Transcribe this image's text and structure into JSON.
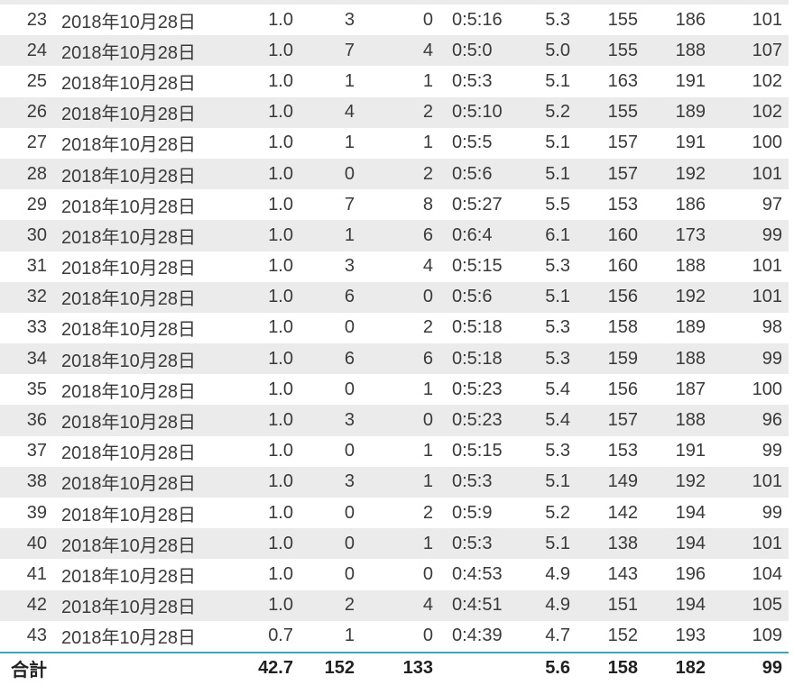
{
  "colors": {
    "row_stripe": "#ebebeb",
    "total_separator_line": "#3da8b4",
    "body_text": "#3a3a3a",
    "total_text": "#212121",
    "background": "#ffffff"
  },
  "table": {
    "rows": [
      [
        "23",
        "2018年10月28日",
        "1.0",
        "3",
        "0",
        "0:5:16",
        "5.3",
        "155",
        "186",
        "101"
      ],
      [
        "24",
        "2018年10月28日",
        "1.0",
        "7",
        "4",
        "0:5:0",
        "5.0",
        "155",
        "188",
        "107"
      ],
      [
        "25",
        "2018年10月28日",
        "1.0",
        "1",
        "1",
        "0:5:3",
        "5.1",
        "163",
        "191",
        "102"
      ],
      [
        "26",
        "2018年10月28日",
        "1.0",
        "4",
        "2",
        "0:5:10",
        "5.2",
        "155",
        "189",
        "102"
      ],
      [
        "27",
        "2018年10月28日",
        "1.0",
        "1",
        "1",
        "0:5:5",
        "5.1",
        "157",
        "191",
        "100"
      ],
      [
        "28",
        "2018年10月28日",
        "1.0",
        "0",
        "2",
        "0:5:6",
        "5.1",
        "157",
        "192",
        "101"
      ],
      [
        "29",
        "2018年10月28日",
        "1.0",
        "7",
        "8",
        "0:5:27",
        "5.5",
        "153",
        "186",
        "97"
      ],
      [
        "30",
        "2018年10月28日",
        "1.0",
        "1",
        "6",
        "0:6:4",
        "6.1",
        "160",
        "173",
        "99"
      ],
      [
        "31",
        "2018年10月28日",
        "1.0",
        "3",
        "4",
        "0:5:15",
        "5.3",
        "160",
        "188",
        "101"
      ],
      [
        "32",
        "2018年10月28日",
        "1.0",
        "6",
        "0",
        "0:5:6",
        "5.1",
        "156",
        "192",
        "101"
      ],
      [
        "33",
        "2018年10月28日",
        "1.0",
        "0",
        "2",
        "0:5:18",
        "5.3",
        "158",
        "189",
        "98"
      ],
      [
        "34",
        "2018年10月28日",
        "1.0",
        "6",
        "6",
        "0:5:18",
        "5.3",
        "159",
        "188",
        "99"
      ],
      [
        "35",
        "2018年10月28日",
        "1.0",
        "0",
        "1",
        "0:5:23",
        "5.4",
        "156",
        "187",
        "100"
      ],
      [
        "36",
        "2018年10月28日",
        "1.0",
        "3",
        "0",
        "0:5:23",
        "5.4",
        "157",
        "188",
        "96"
      ],
      [
        "37",
        "2018年10月28日",
        "1.0",
        "0",
        "1",
        "0:5:15",
        "5.3",
        "153",
        "191",
        "99"
      ],
      [
        "38",
        "2018年10月28日",
        "1.0",
        "3",
        "1",
        "0:5:3",
        "5.1",
        "149",
        "192",
        "101"
      ],
      [
        "39",
        "2018年10月28日",
        "1.0",
        "0",
        "2",
        "0:5:9",
        "5.2",
        "142",
        "194",
        "99"
      ],
      [
        "40",
        "2018年10月28日",
        "1.0",
        "0",
        "1",
        "0:5:3",
        "5.1",
        "138",
        "194",
        "101"
      ],
      [
        "41",
        "2018年10月28日",
        "1.0",
        "0",
        "0",
        "0:4:53",
        "4.9",
        "143",
        "196",
        "104"
      ],
      [
        "42",
        "2018年10月28日",
        "1.0",
        "2",
        "4",
        "0:4:51",
        "4.9",
        "151",
        "194",
        "105"
      ],
      [
        "43",
        "2018年10月28日",
        "0.7",
        "1",
        "0",
        "0:4:39",
        "4.7",
        "152",
        "193",
        "109"
      ]
    ],
    "total_row": {
      "label": "合計",
      "values": [
        "42.7",
        "152",
        "133",
        "",
        "5.6",
        "158",
        "182",
        "99"
      ]
    }
  }
}
